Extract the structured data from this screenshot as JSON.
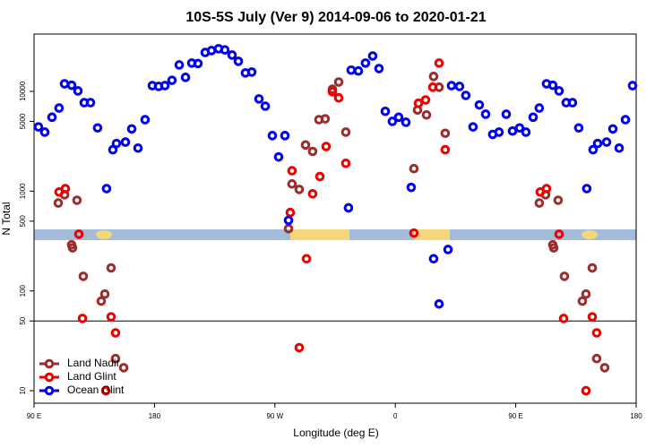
{
  "chart_data": {
    "type": "scatter",
    "title": "10S-5S July (Ver 9)   2014-09-06 to 2020-01-21",
    "x_label": "Longitude (deg E)",
    "y_label": "N Total",
    "xlim": [
      90,
      540
    ],
    "xticks": [
      {
        "value": 90,
        "label": "90 E"
      },
      180,
      {
        "value": 270,
        "label": "90 W"
      },
      {
        "value": 360,
        "label": "0"
      },
      {
        "value": 450,
        "label": "90 E"
      },
      {
        "value": 540,
        "label": "180"
      }
    ],
    "ylim": [
      7.5,
      37500
    ],
    "log_y": true,
    "yticks": [
      10,
      50,
      100,
      500,
      1000,
      5000,
      10000
    ],
    "hline": 50,
    "legend": "bottom left",
    "series": [
      {
        "name": "Land Nadir",
        "color": "#9b2d2d",
        "x": [
          108.1,
          112.8,
          122.1,
          118.1,
          118.8,
          126.8,
          140.2,
          142.9,
          147.6,
          150.9,
          157,
          280.2,
          282.8,
          288.2,
          292.9,
          298.2,
          302.9,
          307.6,
          313,
          317.7,
          323,
          373.9,
          376.6,
          383.3,
          388.6,
          392.7,
          397.3,
          467.6,
          472.3,
          477.7,
          478.4,
          481.7,
          486.4,
          499.8,
          502.5,
          507.2,
          510.5,
          516.5
        ],
        "values": [
          760,
          920,
          810,
          290,
          270,
          140,
          79,
          93,
          170,
          21,
          17,
          420,
          1180,
          1040,
          2900,
          2500,
          5200,
          5300,
          10500,
          12400,
          3900,
          1680,
          6500,
          5800,
          14100,
          11000,
          3800,
          760,
          920,
          290,
          270,
          810,
          140,
          79,
          93,
          170,
          21,
          17
        ]
      },
      {
        "name": "Land Glint",
        "color": "#ee0000",
        "x": [
          108.7,
          113.4,
          123.5,
          126.2,
          147.6,
          150.9,
          143.6,
          281.5,
          282.8,
          288.2,
          293.6,
          298.2,
          303.6,
          308.3,
          313,
          317.7,
          323,
          373.9,
          377.3,
          382.6,
          388,
          392.7,
          397.3,
          468.3,
          473,
          482.4,
          485.8,
          507.2,
          510.5,
          502.5
        ],
        "values": [
          980,
          1060,
          370,
          53,
          55,
          38,
          10,
          610,
          1600,
          27,
          210,
          940,
          1400,
          2800,
          9900,
          8600,
          1900,
          380,
          7600,
          8200,
          11000,
          19200,
          2600,
          980,
          1060,
          370,
          53,
          55,
          38,
          10
        ]
      },
      {
        "name": "Ocean Glint",
        "color": "#0000ee",
        "x": [
          93.3,
          98,
          103.4,
          108.7,
          112.8,
          118.1,
          122.8,
          127.5,
          132.2,
          137.5,
          144.2,
          148.9,
          151.6,
          158.3,
          163,
          167.7,
          173,
          178.4,
          183.1,
          187.8,
          193.1,
          198.5,
          203.2,
          207.9,
          212.5,
          217.9,
          222.6,
          227.9,
          232.6,
          238,
          242.7,
          248,
          252.7,
          258.1,
          262.8,
          268.1,
          272.8,
          277.5,
          280.2,
          325,
          327,
          332.4,
          337.7,
          343.1,
          347.8,
          352.5,
          357.8,
          362.5,
          367.9,
          371.9,
          388.6,
          392.7,
          399.4,
          402,
          408,
          412.7,
          418.1,
          422.8,
          427.5,
          432.8,
          437.5,
          442.9,
          447.6,
          452.9,
          457.6,
          463,
          467.6,
          473,
          477.7,
          482.4,
          487.7,
          492.4,
          497.1,
          503.1,
          507.8,
          511.2,
          517.9,
          522.6,
          527.3,
          532,
          537.3
        ],
        "values": [
          4400,
          3900,
          5500,
          6800,
          11900,
          11500,
          10100,
          7700,
          7700,
          4300,
          1060,
          2600,
          3000,
          3100,
          4200,
          2700,
          5200,
          11400,
          11200,
          11400,
          12900,
          18400,
          13800,
          19200,
          19000,
          24500,
          25600,
          26700,
          26000,
          23100,
          20000,
          15300,
          15600,
          8400,
          7100,
          3600,
          2200,
          3600,
          510,
          680,
          16300,
          16000,
          19200,
          22600,
          16900,
          6300,
          5000,
          5500,
          4900,
          1090,
          210,
          74,
          260,
          11400,
          11200,
          9100,
          4400,
          7300,
          5900,
          3700,
          3900,
          5900,
          4000,
          4300,
          3900,
          5500,
          6800,
          11900,
          11500,
          10100,
          7700,
          7700,
          4300,
          1060,
          2600,
          3000,
          3100,
          4200,
          2700,
          5200,
          11400
        ]
      }
    ]
  }
}
